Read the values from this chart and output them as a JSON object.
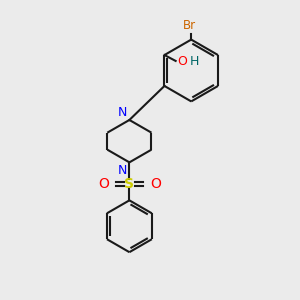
{
  "bg_color": "#ebebeb",
  "bond_color": "#1a1a1a",
  "N_color": "#0000ff",
  "O_color": "#ff0000",
  "S_color": "#cccc00",
  "Br_color": "#cc6600",
  "H_color": "#006666",
  "lw": 1.5,
  "xlim": [
    0,
    10
  ],
  "ylim": [
    0,
    10
  ]
}
